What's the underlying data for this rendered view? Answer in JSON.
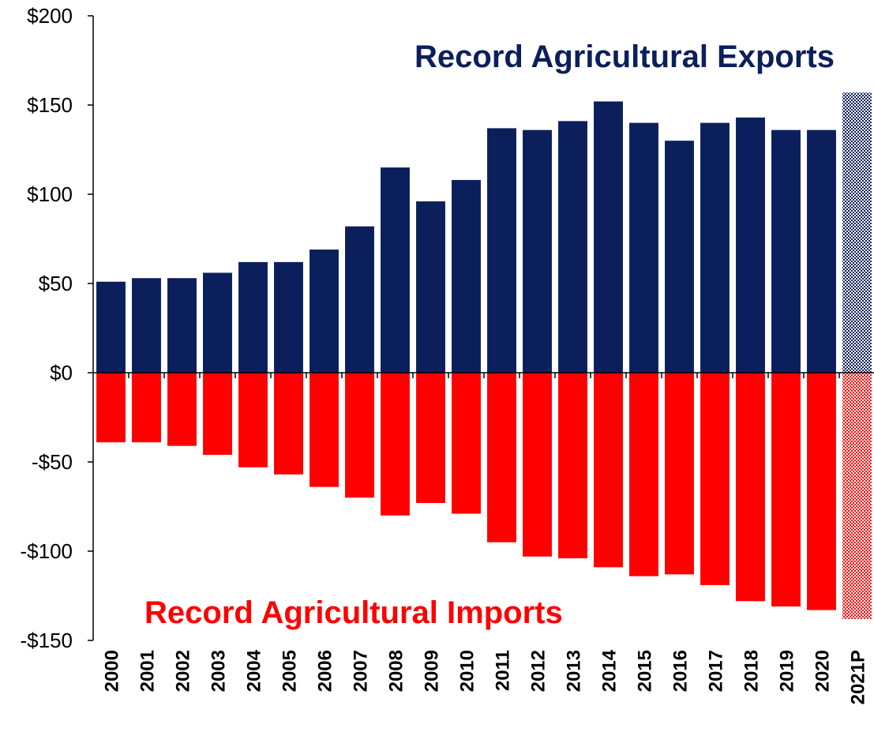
{
  "chart_data": {
    "type": "bar",
    "categories": [
      "2000",
      "2001",
      "2002",
      "2003",
      "2004",
      "2005",
      "2006",
      "2007",
      "2008",
      "2009",
      "2010",
      "2011",
      "2012",
      "2013",
      "2014",
      "2015",
      "2016",
      "2017",
      "2018",
      "2019",
      "2020",
      "2021P"
    ],
    "series": [
      {
        "values": [
          51,
          53,
          53,
          56,
          62,
          62,
          69,
          82,
          115,
          96,
          108,
          137,
          136,
          141,
          152,
          140,
          130,
          140,
          143,
          136,
          136,
          157
        ]
      },
      {
        "values": [
          -39,
          -39,
          -41,
          -46,
          -53,
          -57,
          -64,
          -70,
          -80,
          -73,
          -79,
          -95,
          -103,
          -104,
          -109,
          -114,
          -113,
          -119,
          -128,
          -131,
          -133,
          -138
        ]
      }
    ],
    "projected_category": "2021P",
    "ylim": [
      -150,
      200
    ],
    "yticks": [
      200,
      150,
      100,
      50,
      0,
      -50,
      -100,
      -150
    ],
    "ytick_labels": [
      "$200",
      "$150",
      "$100",
      "$50",
      "$0",
      "-$50",
      "-$100",
      "-$150"
    ],
    "annotations": {
      "exports": "Record Agricultural Exports",
      "imports": "Record Agricultural Imports"
    },
    "colors": {
      "exports": "#0b1f5c",
      "imports": "#ff0000"
    },
    "grid": false
  }
}
